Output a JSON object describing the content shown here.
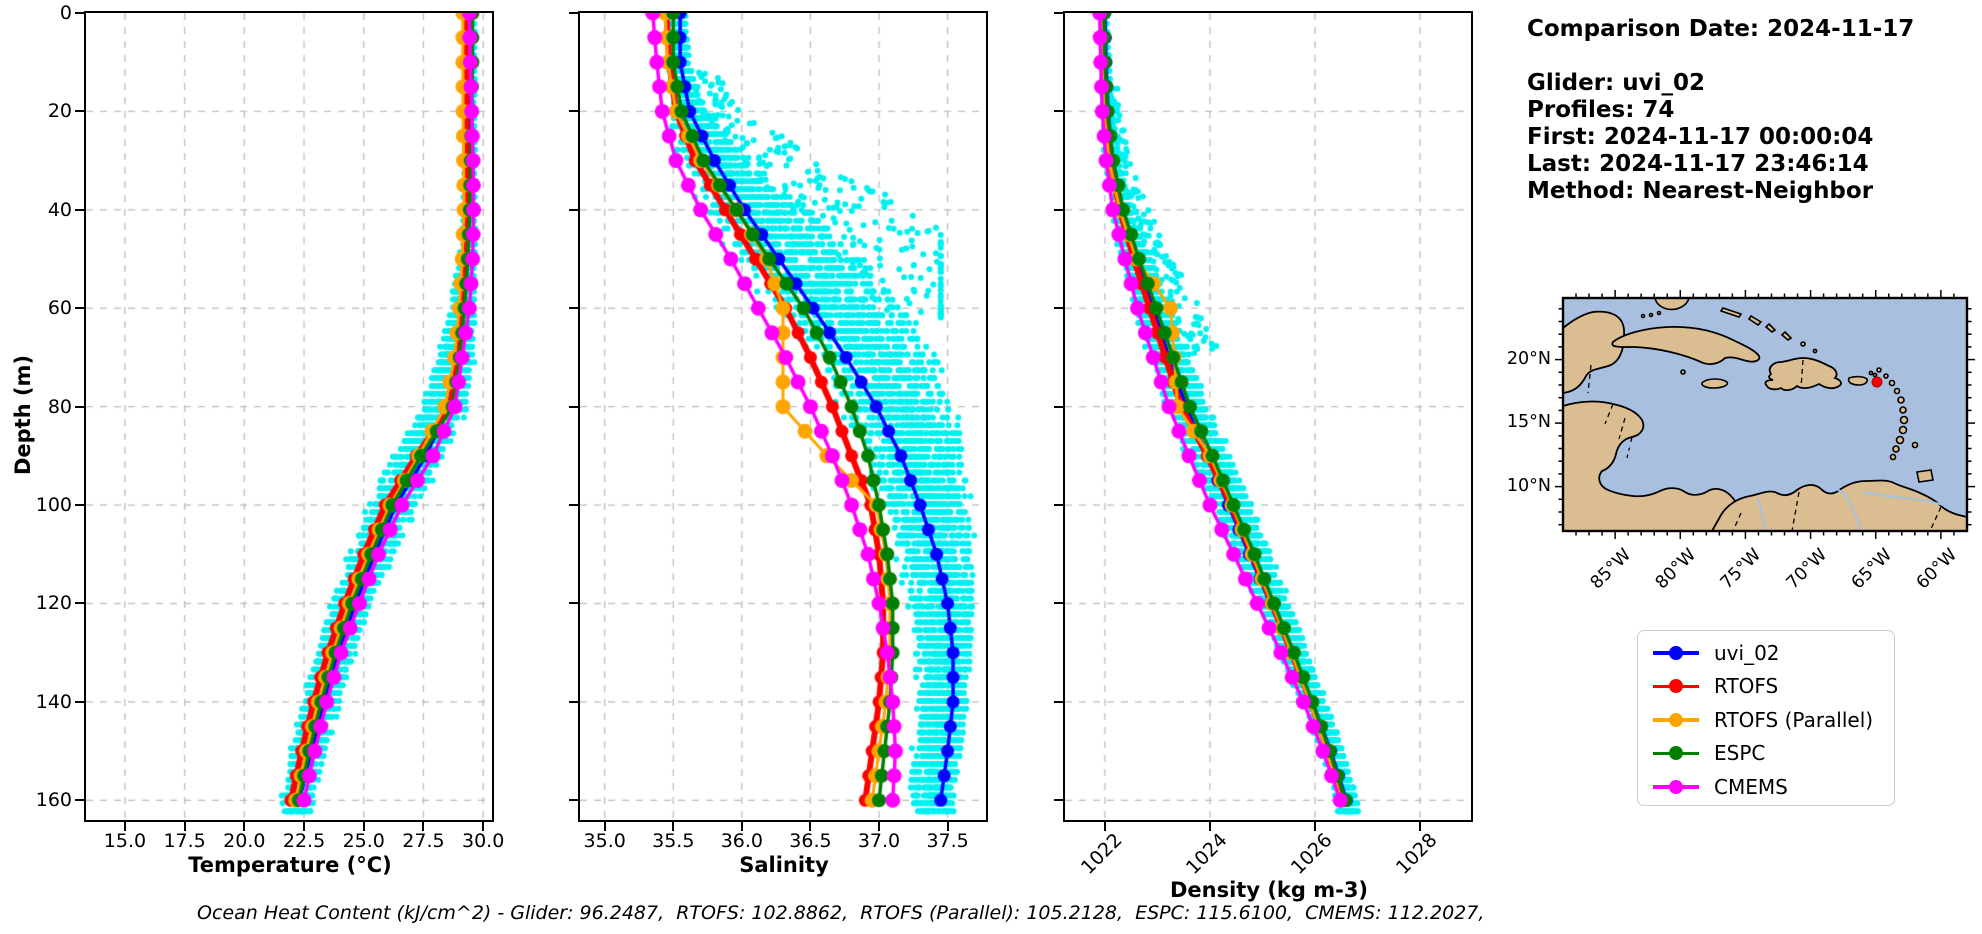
{
  "info_panel": {
    "lines": [
      "Comparison Date: 2024-11-17",
      "",
      "Glider: uvi_02",
      "Profiles: 74",
      "First: 2024-11-17 00:00:04",
      "Last: 2024-11-17 23:46:14",
      "Method: Nearest-Neighbor"
    ]
  },
  "footer": {
    "text": "Ocean Heat Content (kJ/cm^2) - Glider: 96.2487,  RTOFS: 102.8862,  RTOFS (Parallel): 105.2128,  ESPC: 115.6100,  CMEMS: 112.2027,"
  },
  "axes": {
    "depth_label": "Depth (m)",
    "depth_tick_labels": [
      "0",
      "20",
      "40",
      "60",
      "80",
      "100",
      "120",
      "140",
      "160"
    ],
    "depth_tick_values": [
      0,
      20,
      40,
      60,
      80,
      100,
      120,
      140,
      160
    ]
  },
  "legend": {
    "items": [
      {
        "label": "uvi_02",
        "color": "#0000ff"
      },
      {
        "label": "RTOFS",
        "color": "#ff0000"
      },
      {
        "label": "RTOFS (Parallel)",
        "color": "#ffa500"
      },
      {
        "label": "ESPC",
        "color": "#008000"
      },
      {
        "label": "CMEMS",
        "color": "#ff00ff"
      }
    ]
  },
  "map": {
    "x_tick_labels": [
      "85°W",
      "80°W",
      "75°W",
      "70°W",
      "65°W",
      "60°W"
    ],
    "x_tick_lons": [
      85,
      80,
      75,
      70,
      65,
      60
    ],
    "y_tick_labels": [
      "20°N",
      "15°N",
      "10°N"
    ],
    "y_tick_lats": [
      20,
      15,
      10
    ],
    "ocean_color": "#a8bfe0",
    "land_color": "#dbbd92",
    "river_color": "#9fc3e8",
    "glider_marker_color": "#ff0000"
  },
  "chart_data": [
    {
      "id": "temperature",
      "type": "line",
      "xlabel": "Temperature (°C)",
      "ylabel": "Depth (m)",
      "xlim": [
        13.37,
        30.37
      ],
      "ylim": [
        164,
        0
      ],
      "x_tick_labels": [
        "15.0",
        "17.5",
        "20.0",
        "22.5",
        "25.0",
        "27.5",
        "30.0"
      ],
      "x_tick_values": [
        15,
        17.5,
        20,
        22.5,
        25,
        27.5,
        30
      ],
      "depths": [
        0,
        10,
        20,
        30,
        40,
        50,
        60,
        70,
        80,
        90,
        100,
        110,
        120,
        130,
        140,
        150,
        160
      ],
      "series": [
        {
          "name": "uvi_02",
          "color": "#0000ff",
          "values": [
            29.4,
            29.4,
            29.4,
            29.4,
            29.4,
            29.35,
            29.2,
            28.95,
            28.55,
            27.6,
            26.35,
            25.45,
            24.65,
            23.95,
            23.35,
            22.8,
            22.3
          ]
        },
        {
          "name": "RTOFS",
          "color": "#ff0000",
          "values": [
            29.3,
            29.3,
            29.3,
            29.3,
            29.28,
            29.22,
            29.1,
            28.92,
            28.62,
            27.2,
            25.9,
            25.0,
            24.2,
            23.5,
            22.9,
            22.4,
            21.95
          ]
        },
        {
          "name": "RTOFS (Parallel)",
          "color": "#ffa500",
          "values": [
            29.15,
            29.15,
            29.16,
            29.18,
            29.2,
            29.12,
            29.0,
            28.8,
            28.4,
            27.3,
            26.1,
            25.2,
            24.4,
            23.7,
            23.1,
            22.6,
            22.15
          ]
        },
        {
          "name": "ESPC",
          "color": "#008000",
          "values": [
            29.55,
            29.55,
            29.52,
            29.48,
            29.44,
            29.36,
            29.22,
            29.02,
            28.72,
            27.4,
            26.2,
            25.32,
            24.52,
            23.82,
            23.22,
            22.72,
            22.28
          ]
        },
        {
          "name": "CMEMS",
          "color": "#ff00ff",
          "values": [
            29.42,
            29.46,
            29.52,
            29.58,
            29.6,
            29.56,
            29.42,
            29.12,
            28.82,
            27.9,
            26.6,
            25.62,
            24.82,
            24.05,
            23.45,
            22.95,
            22.5
          ]
        }
      ],
      "scatter": {
        "name": "glider raw profiles",
        "color": "#00f0f0",
        "center": [
          29.45,
          29.45,
          29.45,
          29.45,
          29.42,
          29.35,
          29.15,
          28.85,
          28.35,
          27.3,
          26.2,
          25.3,
          24.5,
          23.8,
          23.2,
          22.7,
          22.25
        ],
        "width": [
          0.22,
          0.22,
          0.22,
          0.24,
          0.28,
          0.38,
          0.58,
          0.82,
          1.05,
          1.2,
          1.12,
          1.02,
          0.95,
          0.9,
          0.85,
          0.8,
          0.75
        ],
        "outliers": null
      }
    },
    {
      "id": "salinity",
      "type": "line",
      "xlabel": "Salinity",
      "ylabel": "",
      "xlim": [
        34.82,
        37.78
      ],
      "ylim": [
        164,
        0
      ],
      "x_tick_labels": [
        "35.0",
        "35.5",
        "36.0",
        "36.5",
        "37.0",
        "37.5"
      ],
      "x_tick_values": [
        35,
        35.5,
        36,
        36.5,
        37,
        37.5
      ],
      "depths": [
        0,
        10,
        20,
        30,
        40,
        50,
        60,
        70,
        80,
        90,
        100,
        110,
        120,
        130,
        140,
        150,
        160
      ],
      "series": [
        {
          "name": "uvi_02",
          "color": "#0000ff",
          "values": [
            35.55,
            35.55,
            35.62,
            35.8,
            36.02,
            36.27,
            36.52,
            36.76,
            36.98,
            37.16,
            37.3,
            37.42,
            37.5,
            37.54,
            37.54,
            37.5,
            37.45
          ]
        },
        {
          "name": "RTOFS",
          "color": "#ff0000",
          "values": [
            35.45,
            35.47,
            35.52,
            35.66,
            35.88,
            36.1,
            36.32,
            36.5,
            36.66,
            36.8,
            36.94,
            37.0,
            37.03,
            37.03,
            37.0,
            36.95,
            36.9
          ]
        },
        {
          "name": "RTOFS (Parallel)",
          "color": "#ffa500",
          "values": [
            35.44,
            35.46,
            35.52,
            35.7,
            35.96,
            36.18,
            36.3,
            36.3,
            36.3,
            36.62,
            36.98,
            37.05,
            37.08,
            37.08,
            37.05,
            37.0,
            36.95
          ]
        },
        {
          "name": "ESPC",
          "color": "#008000",
          "values": [
            35.5,
            35.5,
            35.56,
            35.72,
            35.96,
            36.2,
            36.45,
            36.64,
            36.8,
            36.92,
            37.0,
            37.06,
            37.1,
            37.1,
            37.08,
            37.04,
            37.0
          ]
        },
        {
          "name": "CMEMS",
          "color": "#ff00ff",
          "values": [
            35.35,
            35.38,
            35.42,
            35.52,
            35.7,
            35.92,
            36.12,
            36.32,
            36.5,
            36.66,
            36.8,
            36.92,
            37.0,
            37.06,
            37.1,
            37.12,
            37.1
          ]
        }
      ],
      "scatter": {
        "name": "glider raw profiles",
        "color": "#00f0f0",
        "center": [
          35.52,
          35.54,
          35.6,
          35.8,
          36.1,
          36.4,
          36.7,
          36.95,
          37.12,
          37.25,
          37.33,
          37.4,
          37.45,
          37.47,
          37.46,
          37.42,
          37.38
        ],
        "width": [
          0.07,
          0.08,
          0.14,
          0.28,
          0.42,
          0.5,
          0.52,
          0.5,
          0.45,
          0.4,
          0.35,
          0.3,
          0.26,
          0.22,
          0.2,
          0.18,
          0.18
        ],
        "outliers": {
          "count": 230,
          "dmin": 12,
          "dmax": 62,
          "reach": 2.2,
          "cap": 37.45
        }
      }
    },
    {
      "id": "density",
      "type": "line",
      "xlabel": "Density (kg m-3)",
      "ylabel": "",
      "xlim": [
        1021.24,
        1028.97
      ],
      "ylim": [
        164,
        0
      ],
      "x_tick_labels": [
        "1022",
        "1024",
        "1026",
        "1028"
      ],
      "x_tick_values": [
        1022,
        1024,
        1026,
        1028
      ],
      "depths": [
        0,
        10,
        20,
        30,
        40,
        50,
        60,
        70,
        80,
        90,
        100,
        110,
        120,
        130,
        140,
        150,
        160
      ],
      "series": [
        {
          "name": "uvi_02",
          "color": "#0000ff",
          "values": [
            1022.0,
            1022.02,
            1022.06,
            1022.15,
            1022.32,
            1022.6,
            1022.92,
            1023.22,
            1023.55,
            1023.95,
            1024.35,
            1024.75,
            1025.15,
            1025.55,
            1025.95,
            1026.3,
            1026.6
          ]
        },
        {
          "name": "RTOFS",
          "color": "#ff0000",
          "values": [
            1021.95,
            1021.97,
            1022.0,
            1022.1,
            1022.28,
            1022.55,
            1022.85,
            1023.15,
            1023.45,
            1023.95,
            1024.4,
            1024.8,
            1025.18,
            1025.55,
            1025.92,
            1026.25,
            1026.55
          ]
        },
        {
          "name": "RTOFS (Parallel)",
          "color": "#ffa500",
          "values": [
            1021.93,
            1021.95,
            1021.98,
            1022.08,
            1022.28,
            1022.6,
            1023.25,
            1023.32,
            1023.38,
            1024.0,
            1024.42,
            1024.8,
            1025.18,
            1025.55,
            1025.9,
            1026.22,
            1026.5
          ]
        },
        {
          "name": "ESPC",
          "color": "#008000",
          "values": [
            1021.98,
            1022.0,
            1022.05,
            1022.16,
            1022.35,
            1022.65,
            1022.98,
            1023.3,
            1023.62,
            1024.05,
            1024.45,
            1024.85,
            1025.22,
            1025.6,
            1025.95,
            1026.28,
            1026.58
          ]
        },
        {
          "name": "CMEMS",
          "color": "#ff00ff",
          "values": [
            1021.9,
            1021.92,
            1021.95,
            1022.02,
            1022.15,
            1022.38,
            1022.62,
            1022.92,
            1023.22,
            1023.6,
            1024.0,
            1024.45,
            1024.9,
            1025.35,
            1025.78,
            1026.15,
            1026.48
          ]
        }
      ],
      "scatter": {
        "name": "glider raw profiles",
        "color": "#00f0f0",
        "center": [
          1021.98,
          1022.0,
          1022.04,
          1022.12,
          1022.3,
          1022.58,
          1022.9,
          1023.22,
          1023.55,
          1023.98,
          1024.4,
          1024.8,
          1025.2,
          1025.58,
          1025.95,
          1026.3,
          1026.6
        ],
        "width": [
          0.06,
          0.08,
          0.1,
          0.15,
          0.22,
          0.3,
          0.38,
          0.42,
          0.45,
          0.45,
          0.42,
          0.38,
          0.34,
          0.3,
          0.27,
          0.24,
          0.22
        ],
        "outliers": {
          "count": 150,
          "dmin": 15,
          "dmax": 70,
          "reach": 1.8,
          "cap": 1025.0
        }
      }
    }
  ]
}
